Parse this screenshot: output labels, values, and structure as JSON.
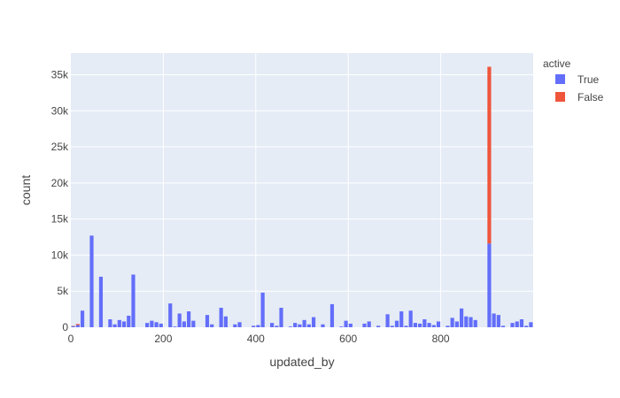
{
  "chart_data": {
    "type": "bar",
    "barmode": "stack",
    "xlabel": "updated_by",
    "ylabel": "count",
    "xlim": [
      0,
      1000
    ],
    "ylim": [
      0,
      38000
    ],
    "x_ticks": [
      0,
      200,
      400,
      600,
      800
    ],
    "x_tick_labels": [
      "0",
      "200",
      "400",
      "600",
      "800"
    ],
    "y_ticks": [
      0,
      5000,
      10000,
      15000,
      20000,
      25000,
      30000,
      35000
    ],
    "y_tick_labels": [
      "0",
      "5k",
      "10k",
      "15k",
      "20k",
      "25k",
      "30k",
      "35k"
    ],
    "grid": true,
    "bin_width": 10,
    "legend": {
      "title": "active",
      "placement": "right"
    },
    "series": [
      {
        "name": "True",
        "color": "#636efa",
        "points": [
          [
            0,
            150
          ],
          [
            10,
            300
          ],
          [
            20,
            2300
          ],
          [
            40,
            12700
          ],
          [
            60,
            7000
          ],
          [
            80,
            1100
          ],
          [
            90,
            400
          ],
          [
            100,
            1000
          ],
          [
            110,
            800
          ],
          [
            120,
            1600
          ],
          [
            130,
            7300
          ],
          [
            160,
            600
          ],
          [
            170,
            900
          ],
          [
            180,
            700
          ],
          [
            190,
            500
          ],
          [
            210,
            3300
          ],
          [
            220,
            100
          ],
          [
            230,
            1900
          ],
          [
            240,
            800
          ],
          [
            250,
            2200
          ],
          [
            260,
            900
          ],
          [
            290,
            1700
          ],
          [
            300,
            400
          ],
          [
            320,
            2700
          ],
          [
            330,
            1500
          ],
          [
            350,
            400
          ],
          [
            360,
            700
          ],
          [
            390,
            200
          ],
          [
            400,
            300
          ],
          [
            410,
            4800
          ],
          [
            430,
            600
          ],
          [
            440,
            200
          ],
          [
            450,
            2700
          ],
          [
            470,
            100
          ],
          [
            480,
            600
          ],
          [
            490,
            400
          ],
          [
            500,
            1000
          ],
          [
            510,
            400
          ],
          [
            520,
            1400
          ],
          [
            540,
            400
          ],
          [
            560,
            3200
          ],
          [
            580,
            100
          ],
          [
            590,
            900
          ],
          [
            600,
            500
          ],
          [
            630,
            500
          ],
          [
            640,
            800
          ],
          [
            660,
            200
          ],
          [
            680,
            1800
          ],
          [
            690,
            200
          ],
          [
            700,
            900
          ],
          [
            710,
            2200
          ],
          [
            720,
            200
          ],
          [
            730,
            2300
          ],
          [
            740,
            600
          ],
          [
            750,
            500
          ],
          [
            760,
            1100
          ],
          [
            770,
            600
          ],
          [
            780,
            300
          ],
          [
            790,
            800
          ],
          [
            810,
            200
          ],
          [
            820,
            1300
          ],
          [
            830,
            800
          ],
          [
            840,
            2600
          ],
          [
            850,
            1500
          ],
          [
            860,
            1400
          ],
          [
            870,
            1000
          ],
          [
            900,
            11600
          ],
          [
            910,
            1900
          ],
          [
            920,
            1700
          ],
          [
            930,
            200
          ],
          [
            950,
            600
          ],
          [
            960,
            800
          ],
          [
            970,
            1100
          ],
          [
            980,
            200
          ],
          [
            990,
            700
          ]
        ]
      },
      {
        "name": "False",
        "color": "#ef553b",
        "points": [
          [
            0,
            50
          ],
          [
            10,
            150
          ],
          [
            900,
            24500
          ]
        ]
      }
    ]
  }
}
